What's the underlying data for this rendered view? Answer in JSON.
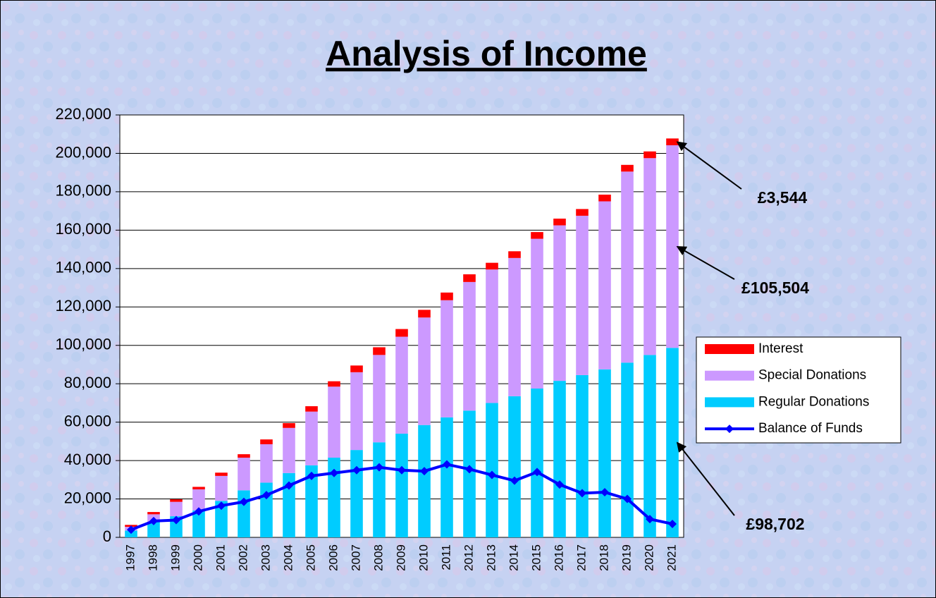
{
  "chart_data": {
    "type": "bar",
    "title": "Analysis of Income",
    "categories": [
      "1997",
      "1998",
      "1999",
      "2000",
      "2001",
      "2002",
      "2003",
      "2004",
      "2005",
      "2006",
      "2007",
      "2008",
      "2009",
      "2010",
      "2011",
      "2012",
      "2013",
      "2014",
      "2015",
      "2016",
      "2017",
      "2018",
      "2019",
      "2020",
      "2021"
    ],
    "stacked": true,
    "series": [
      {
        "name": "Regular Donations",
        "color": "#00ccff",
        "type": "bar",
        "values": [
          3500,
          8000,
          11000,
          14000,
          19000,
          24500,
          28500,
          33500,
          37500,
          41500,
          45500,
          49500,
          54000,
          58500,
          62500,
          66000,
          70000,
          73500,
          77500,
          81500,
          84500,
          87500,
          91000,
          95000,
          98702
        ]
      },
      {
        "name": "Special Donations",
        "color": "#cc99ff",
        "type": "bar",
        "values": [
          2000,
          4000,
          7500,
          11000,
          13000,
          17000,
          20000,
          23500,
          28000,
          37000,
          40500,
          45500,
          50500,
          56000,
          61000,
          67000,
          69500,
          72000,
          78000,
          81000,
          83000,
          87500,
          99500,
          102500,
          105504
        ]
      },
      {
        "name": "Interest",
        "color": "#ff0000",
        "type": "bar",
        "values": [
          1000,
          1200,
          1300,
          1300,
          1700,
          1800,
          2500,
          2500,
          2800,
          2800,
          3500,
          4000,
          4000,
          4000,
          4000,
          4000,
          3500,
          3500,
          3500,
          3500,
          3500,
          3500,
          3500,
          3500,
          3544
        ]
      },
      {
        "name": "Balance of Funds",
        "color": "#0000ff",
        "type": "line",
        "values": [
          4000,
          8500,
          9000,
          13500,
          16500,
          18500,
          22000,
          27000,
          32000,
          33500,
          35000,
          36500,
          35000,
          34500,
          38000,
          35500,
          32500,
          29500,
          34000,
          27500,
          23000,
          23500,
          20000,
          9500,
          7000
        ]
      }
    ],
    "annotations": [
      "£3,544",
      "£105,504",
      "£98,702"
    ],
    "ylim": [
      0,
      220000
    ],
    "yticks": [
      0,
      {
        "value": 20000,
        "label": "20,000"
      },
      {
        "value": 40000,
        "label": "40,000"
      },
      {
        "value": 60000,
        "label": "60,000"
      },
      {
        "value": 80000,
        "label": "80,000"
      },
      {
        "value": 100000,
        "label": "100,000"
      },
      {
        "value": 120000,
        "label": "120,000"
      },
      {
        "value": 140000,
        "label": "140,000"
      },
      {
        "value": 160000,
        "label": "160,000"
      },
      {
        "value": 180000,
        "label": "180,000"
      },
      {
        "value": 200000,
        "label": "200,000"
      },
      {
        "value": 220000,
        "label": "220,000"
      }
    ],
    "grid": true,
    "legend": "right"
  }
}
